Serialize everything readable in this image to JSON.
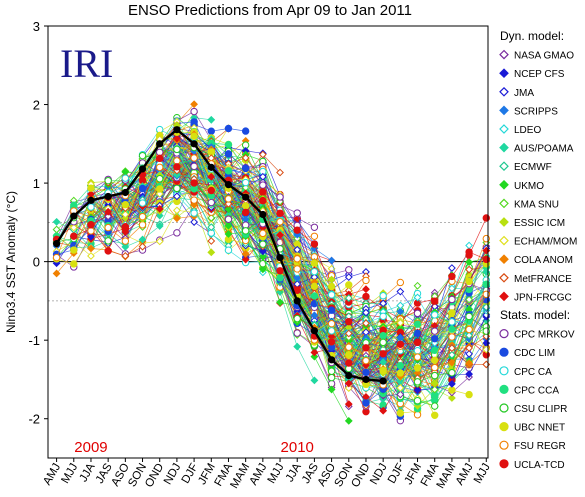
{
  "chart_data": {
    "type": "line",
    "title": "ENSO Predictions from Apr 09 to Jan 2011",
    "watermark": "IRI",
    "ylabel": "Nino3.4 SST Anomaly (°C)",
    "ylim": [
      -2.5,
      3
    ],
    "yticks": [
      -2,
      -1,
      0,
      1,
      2,
      3
    ],
    "reference_lines": [
      0.5,
      -0.5
    ],
    "year_labels": [
      {
        "text": "2009",
        "season": "JJA"
      },
      {
        "text": "2010",
        "season": "JJA "
      }
    ],
    "seasons": [
      "AMJ",
      "MJJ",
      "JJA",
      "JAS",
      "ASO",
      "SON",
      "OND",
      "NDJ",
      "DJF",
      "JFM",
      "FMA",
      "MAM",
      "AMJ ",
      "MJJ ",
      "JJA ",
      "JAS ",
      "ASO ",
      "SON ",
      "OND ",
      "NDJ ",
      "DJF ",
      "JFM ",
      "FMA ",
      "MAM ",
      "AMJ  ",
      "MJJ  "
    ],
    "observed": {
      "name": "Observed",
      "color": "#000000",
      "values": [
        0.23,
        0.58,
        0.78,
        0.83,
        0.88,
        1.18,
        1.5,
        1.68,
        1.5,
        1.2,
        0.98,
        0.82,
        0.6,
        0.05,
        -0.5,
        -0.88,
        -1.25,
        -1.45,
        -1.5,
        -1.52
      ]
    },
    "legend": {
      "dyn_heading": "Dyn. model:",
      "stat_heading": "Stats. model:",
      "dynamic": [
        {
          "name": "NASA GMAO",
          "color": "#7a2d9e",
          "marker": "diamond-open"
        },
        {
          "name": "NCEP CFS",
          "color": "#1a1ad6",
          "marker": "diamond"
        },
        {
          "name": "JMA",
          "color": "#1a1ad6",
          "marker": "diamond-open"
        },
        {
          "name": "SCRIPPS",
          "color": "#1e78e6",
          "marker": "diamond"
        },
        {
          "name": "LDEO",
          "color": "#22d8d8",
          "marker": "diamond-open"
        },
        {
          "name": "AUS/POAMA",
          "color": "#20d8a0",
          "marker": "diamond"
        },
        {
          "name": "ECMWF",
          "color": "#20c890",
          "marker": "diamond-open"
        },
        {
          "name": "UKMO",
          "color": "#22d822",
          "marker": "diamond"
        },
        {
          "name": "KMA SNU",
          "color": "#55d822",
          "marker": "diamond-open"
        },
        {
          "name": "ESSIC ICM",
          "color": "#b8e010",
          "marker": "diamond"
        },
        {
          "name": "ECHAM/MOM",
          "color": "#e0e020",
          "marker": "diamond-open"
        },
        {
          "name": "COLA ANOM",
          "color": "#f08000",
          "marker": "diamond"
        },
        {
          "name": "MetFRANCE",
          "color": "#d84a10",
          "marker": "diamond-open"
        },
        {
          "name": "JPN-FRCGC",
          "color": "#e01010",
          "marker": "diamond"
        }
      ],
      "statistical": [
        {
          "name": "CPC MRKOV",
          "color": "#7a2d9e",
          "marker": "circle-open"
        },
        {
          "name": "CDC LIM",
          "color": "#1a4ae0",
          "marker": "circle"
        },
        {
          "name": "CPC CA",
          "color": "#22d8d8",
          "marker": "circle-open"
        },
        {
          "name": "CPC CCA",
          "color": "#20e080",
          "marker": "circle"
        },
        {
          "name": "CSU CLIPR",
          "color": "#22c822",
          "marker": "circle-open"
        },
        {
          "name": "UBC NNET",
          "color": "#d8e010",
          "marker": "circle"
        },
        {
          "name": "FSU REGR",
          "color": "#f08000",
          "marker": "circle-open"
        },
        {
          "name": "UCLA-TCD",
          "color": "#e01010",
          "marker": "circle"
        }
      ]
    }
  }
}
